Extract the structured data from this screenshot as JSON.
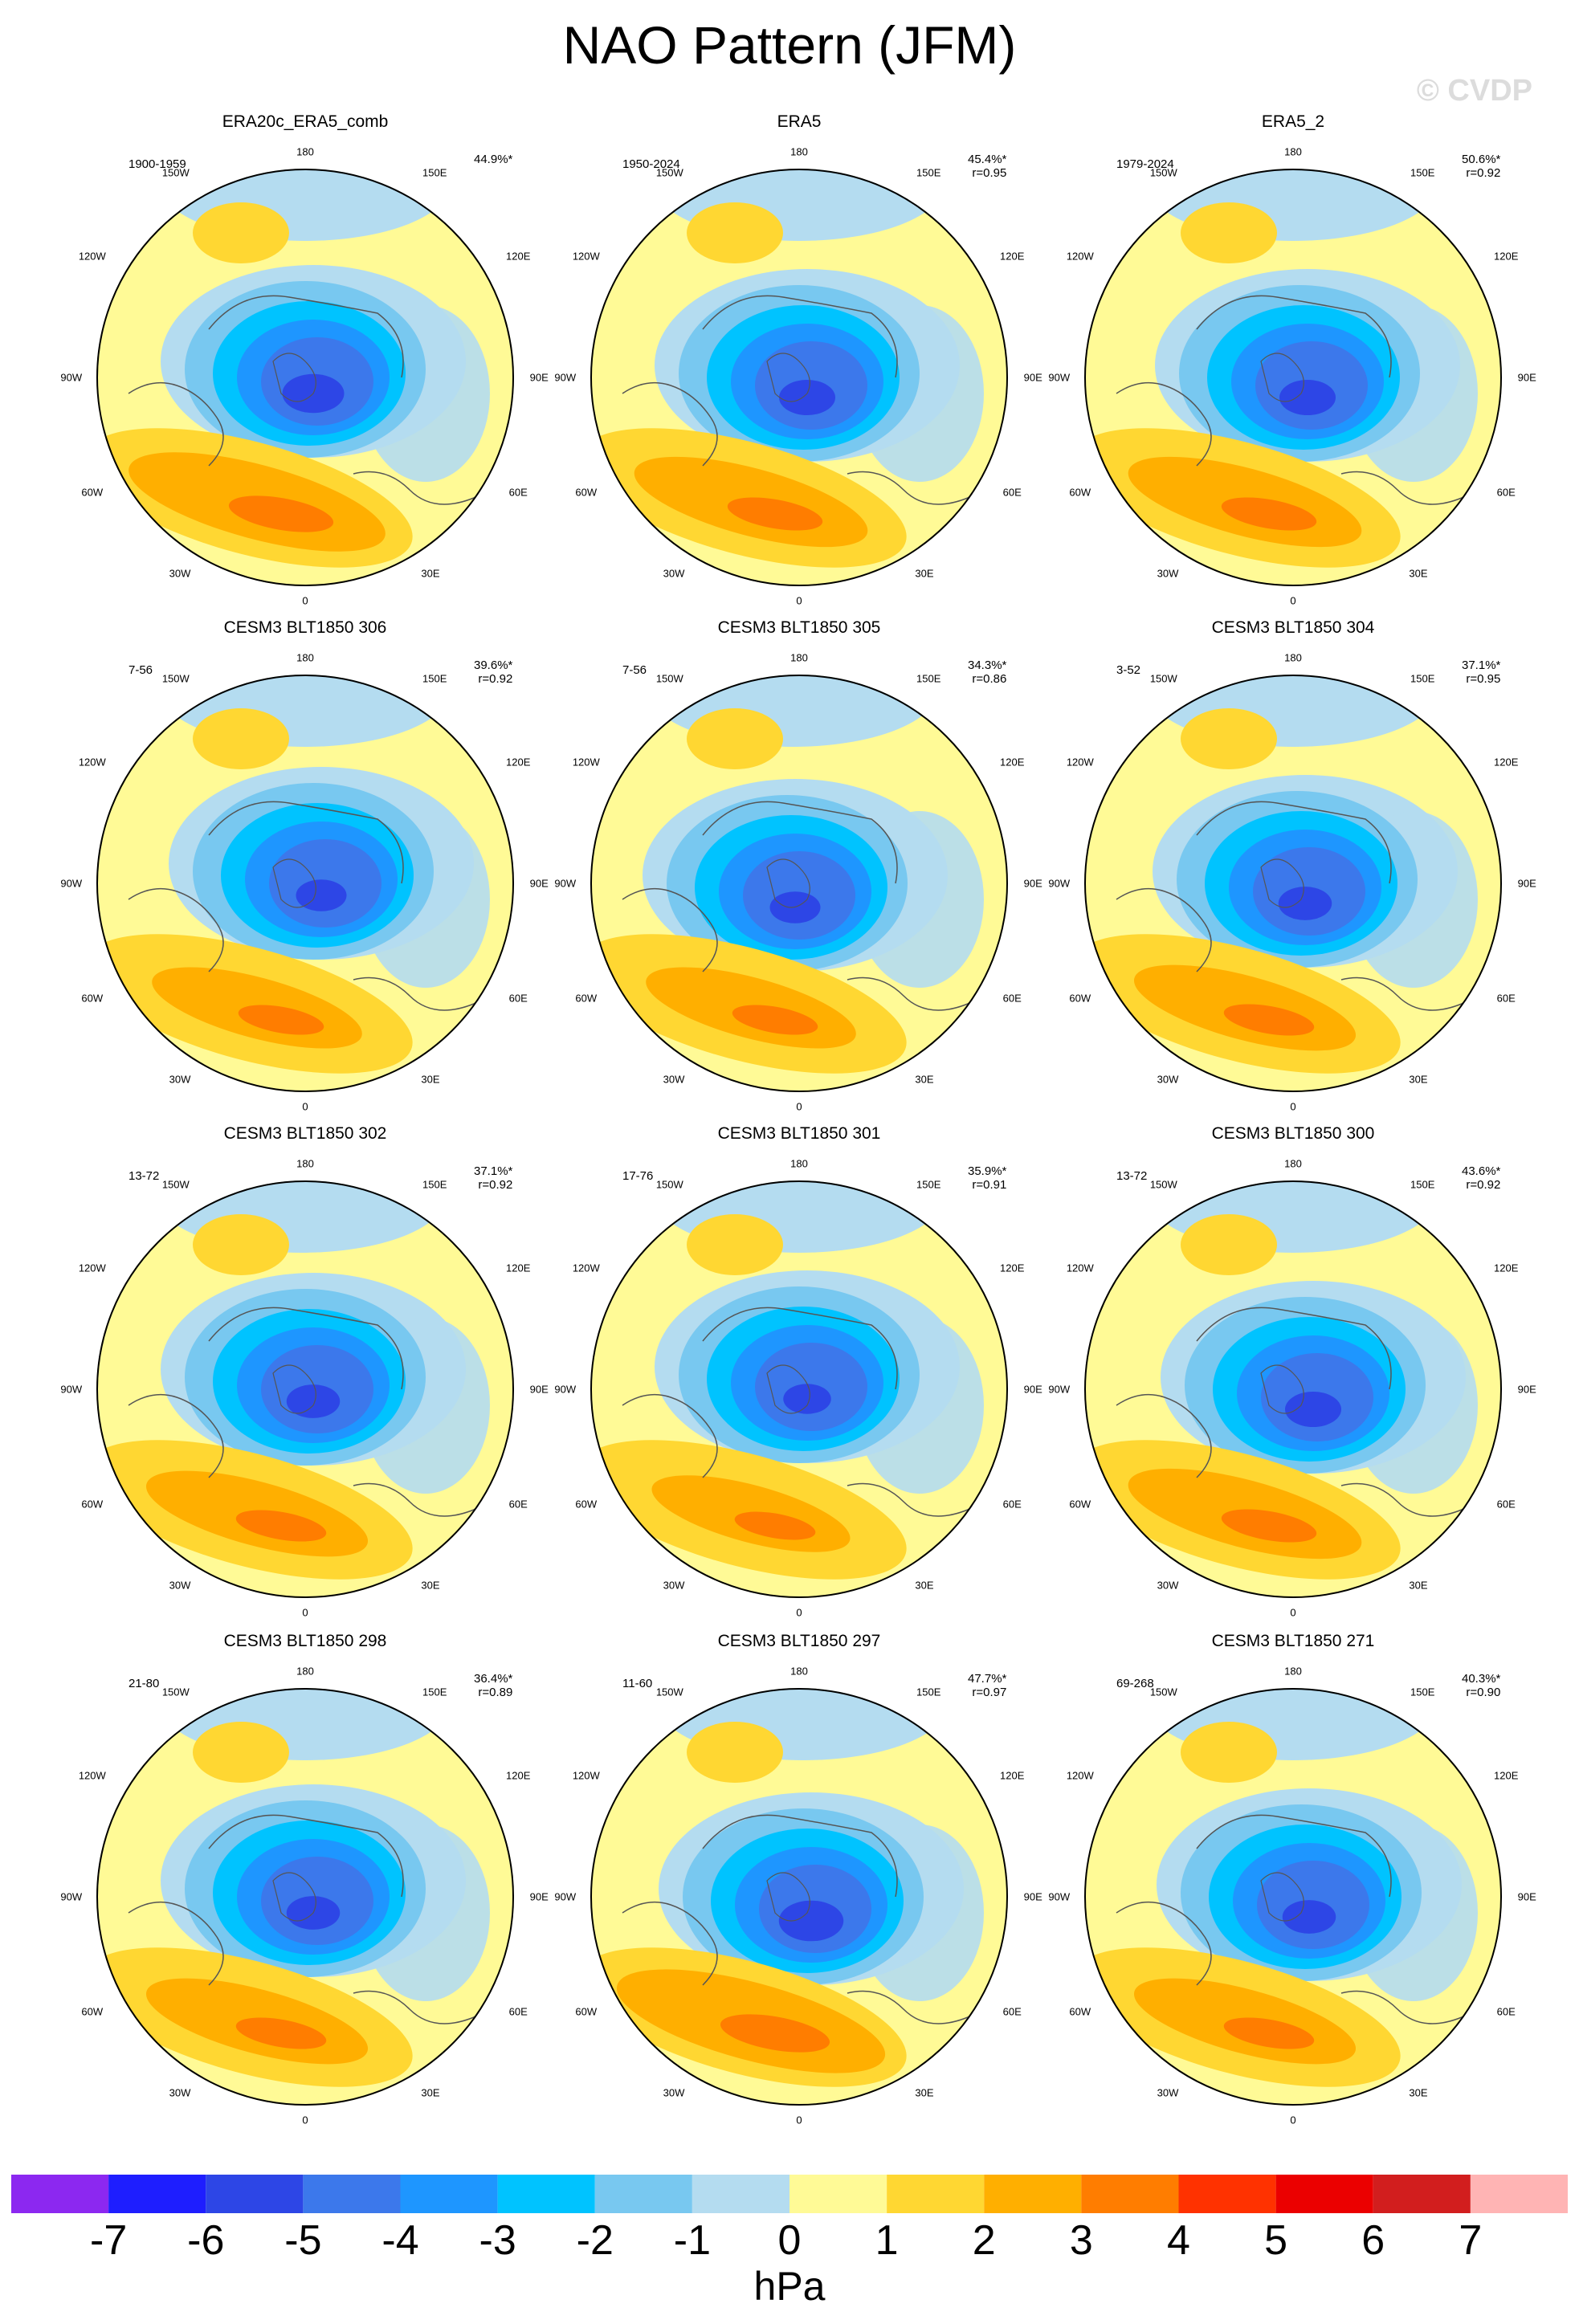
{
  "title": "NAO Pattern (JFM)",
  "watermark": "© CVDP",
  "lon_labels": {
    "top": "180",
    "bottom": "0",
    "w150": "150W",
    "e150": "150E",
    "w120": "120W",
    "e120": "120E",
    "w90": "90W",
    "e90": "90E",
    "w60": "60W",
    "e60": "60E",
    "w30": "30W",
    "e30": "30E"
  },
  "panels": [
    {
      "name": "ERA20c_ERA5_comb",
      "period": "1900-1959",
      "pct": "44.9%*",
      "r": ""
    },
    {
      "name": "ERA5",
      "period": "1950-2024",
      "pct": "45.4%*",
      "r": "r=0.95"
    },
    {
      "name": "ERA5_2",
      "period": "1979-2024",
      "pct": "50.6%*",
      "r": "r=0.92"
    },
    {
      "name": "CESM3 BLT1850 306",
      "period": "7-56",
      "pct": "39.6%*",
      "r": "r=0.92"
    },
    {
      "name": "CESM3 BLT1850 305",
      "period": "7-56",
      "pct": "34.3%*",
      "r": "r=0.86"
    },
    {
      "name": "CESM3 BLT1850 304",
      "period": "3-52",
      "pct": "37.1%*",
      "r": "r=0.95"
    },
    {
      "name": "CESM3 BLT1850 302",
      "period": "13-72",
      "pct": "37.1%*",
      "r": "r=0.92"
    },
    {
      "name": "CESM3 BLT1850 301",
      "period": "17-76",
      "pct": "35.9%*",
      "r": "r=0.91"
    },
    {
      "name": "CESM3 BLT1850 300",
      "period": "13-72",
      "pct": "43.6%*",
      "r": "r=0.92"
    },
    {
      "name": "CESM3 BLT1850 298",
      "period": "21-80",
      "pct": "36.4%*",
      "r": "r=0.89"
    },
    {
      "name": "CESM3 BLT1850 297",
      "period": "11-60",
      "pct": "47.7%*",
      "r": "r=0.97"
    },
    {
      "name": "CESM3 BLT1850 271",
      "period": "69-268",
      "pct": "40.3%*",
      "r": "r=0.90"
    }
  ],
  "colorbar": {
    "label": "hPa",
    "ticks": [
      "-7",
      "-6",
      "-5",
      "-4",
      "-3",
      "-2",
      "-1",
      "0",
      "1",
      "2",
      "3",
      "4",
      "5",
      "6",
      "7"
    ],
    "colors": [
      "#8c28f0",
      "#1e1eff",
      "#2d46e6",
      "#3c78eb",
      "#1e96ff",
      "#00c3ff",
      "#78c8f0",
      "#b4dcf0",
      "#fffa96",
      "#ffd732",
      "#ffaf00",
      "#ff7d00",
      "#ff3200",
      "#eb0000",
      "#d21e1e",
      "#ffb4b4"
    ]
  }
}
